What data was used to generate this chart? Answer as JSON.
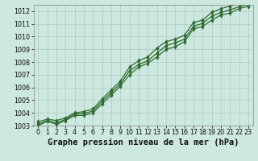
{
  "title": "Graphe pression niveau de la mer (hPa)",
  "x_values": [
    0,
    1,
    2,
    3,
    4,
    5,
    6,
    7,
    8,
    9,
    10,
    11,
    12,
    13,
    14,
    15,
    16,
    17,
    18,
    19,
    20,
    21,
    22,
    23
  ],
  "line1": [
    1003.3,
    1003.5,
    1003.4,
    1003.6,
    1004.0,
    1004.1,
    1004.3,
    1005.1,
    1005.8,
    1006.5,
    1007.6,
    1008.1,
    1008.4,
    1009.1,
    1009.6,
    1009.8,
    1010.1,
    1011.1,
    1011.3,
    1011.9,
    1012.2,
    1012.4,
    1012.6,
    1012.8
  ],
  "line2": [
    1003.1,
    1003.4,
    1003.2,
    1003.5,
    1003.9,
    1003.95,
    1004.15,
    1004.9,
    1005.6,
    1006.3,
    1007.3,
    1007.8,
    1008.1,
    1008.7,
    1009.3,
    1009.5,
    1009.8,
    1010.8,
    1011.05,
    1011.6,
    1011.9,
    1012.1,
    1012.35,
    1012.55
  ],
  "line3": [
    1003.0,
    1003.35,
    1003.1,
    1003.4,
    1003.8,
    1003.8,
    1004.0,
    1004.7,
    1005.4,
    1006.1,
    1007.0,
    1007.6,
    1007.9,
    1008.4,
    1009.0,
    1009.2,
    1009.6,
    1010.6,
    1010.8,
    1011.3,
    1011.7,
    1011.85,
    1012.2,
    1012.4
  ],
  "line_color": "#2d6a2d",
  "bg_color": "#cce8e0",
  "grid_major_color": "#b0c8c0",
  "grid_minor_color": "#d0e8e0",
  "ylim": [
    1003.0,
    1012.5
  ],
  "yticks": [
    1003,
    1004,
    1005,
    1006,
    1007,
    1008,
    1009,
    1010,
    1011,
    1012
  ],
  "xticks": [
    0,
    1,
    2,
    3,
    4,
    5,
    6,
    7,
    8,
    9,
    10,
    11,
    12,
    13,
    14,
    15,
    16,
    17,
    18,
    19,
    20,
    21,
    22,
    23
  ],
  "tick_fontsize": 5.8,
  "title_fontsize": 7.5
}
